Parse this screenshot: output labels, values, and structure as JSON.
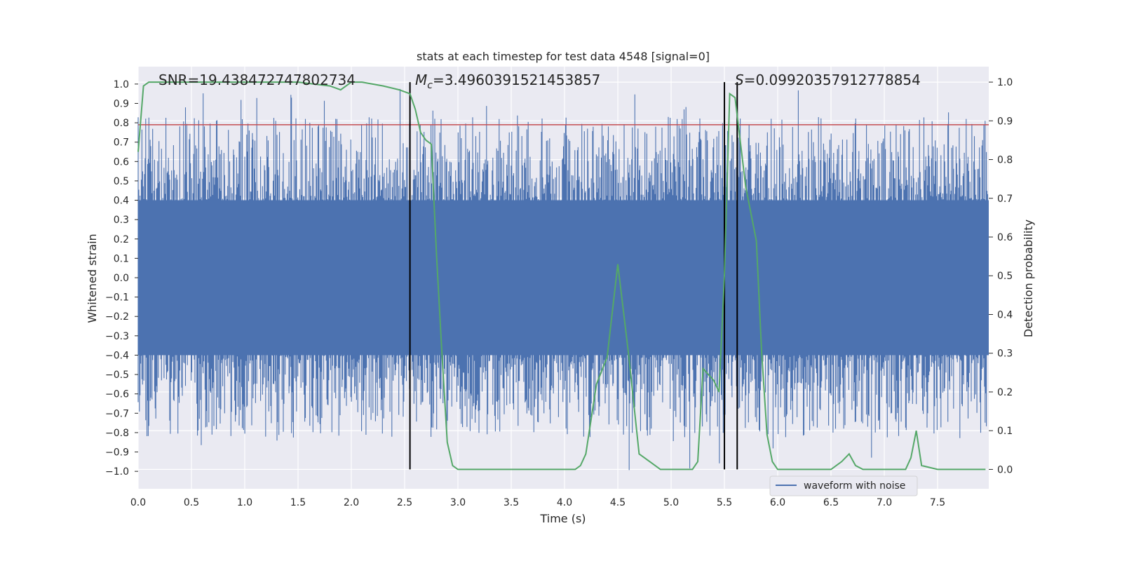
{
  "chart_data": {
    "type": "line",
    "title": "stats at each timestep for test data 4548 [signal=0]",
    "xlabel": "Time (s)",
    "ylabel_left": "Whitened strain",
    "ylabel_right": "Detection probability",
    "xlim": [
      0.0,
      7.98
    ],
    "ylim_left": [
      -1.09,
      1.09
    ],
    "ylim_right": [
      -0.05,
      1.04
    ],
    "x_ticks": [
      "0.0",
      "0.5",
      "1.0",
      "1.5",
      "2.0",
      "2.5",
      "3.0",
      "3.5",
      "4.0",
      "4.5",
      "5.0",
      "5.5",
      "6.0",
      "6.5",
      "7.0",
      "7.5"
    ],
    "y_ticks_left": [
      "1.0",
      "0.9",
      "0.8",
      "0.7",
      "0.6",
      "0.5",
      "0.4",
      "0.3",
      "0.2",
      "0.1",
      "0.0",
      "−0.1",
      "−0.2",
      "−0.3",
      "−0.4",
      "−0.5",
      "−0.6",
      "−0.7",
      "−0.8",
      "−0.9",
      "−1.0"
    ],
    "y_ticks_right": [
      "1.0",
      "0.9",
      "0.8",
      "0.7",
      "0.6",
      "0.5",
      "0.4",
      "0.3",
      "0.2",
      "0.1",
      "0.0"
    ],
    "grid": true,
    "legend_position": "bottom-right",
    "series": [
      {
        "name": "waveform with noise",
        "axis": "left",
        "color": "#4c72b0",
        "style": "dense noisy waveform",
        "x_range": [
          0.0,
          7.98
        ],
        "core_amplitude": 0.4,
        "peak_max": 0.98,
        "peak_min": -1.0
      },
      {
        "name": "detection probability",
        "axis": "right",
        "color": "#55a868",
        "x": [
          0.0,
          0.05,
          0.1,
          0.2,
          0.5,
          1.0,
          1.5,
          1.8,
          1.9,
          2.0,
          2.1,
          2.3,
          2.45,
          2.55,
          2.6,
          2.65,
          2.7,
          2.75,
          2.8,
          2.85,
          2.9,
          2.95,
          3.0,
          3.5,
          4.0,
          4.05,
          4.1,
          4.15,
          4.2,
          4.3,
          4.4,
          4.5,
          4.6,
          4.7,
          4.8,
          4.9,
          5.0,
          5.1,
          5.2,
          5.25,
          5.3,
          5.4,
          5.45,
          5.5,
          5.55,
          5.6,
          5.7,
          5.8,
          5.85,
          5.9,
          5.95,
          6.0,
          6.05,
          6.1,
          6.5,
          6.6,
          6.67,
          6.73,
          6.8,
          7.0,
          7.2,
          7.25,
          7.3,
          7.35,
          7.5,
          7.95
        ],
        "y": [
          0.82,
          0.99,
          1.0,
          1.0,
          1.0,
          1.0,
          1.0,
          0.99,
          0.98,
          1.0,
          1.0,
          0.99,
          0.98,
          0.97,
          0.93,
          0.87,
          0.85,
          0.84,
          0.55,
          0.3,
          0.07,
          0.01,
          0.0,
          0.0,
          0.0,
          0.0,
          0.0,
          0.01,
          0.04,
          0.22,
          0.29,
          0.53,
          0.3,
          0.04,
          0.02,
          0.0,
          0.0,
          0.0,
          0.0,
          0.02,
          0.26,
          0.23,
          0.2,
          0.5,
          0.97,
          0.96,
          0.73,
          0.59,
          0.3,
          0.09,
          0.02,
          0.0,
          0.0,
          0.0,
          0.0,
          0.02,
          0.04,
          0.01,
          0.0,
          0.0,
          0.0,
          0.03,
          0.1,
          0.01,
          0.0,
          0.0
        ]
      }
    ],
    "threshold_line": {
      "axis": "left",
      "y": 0.79,
      "color": "#c44e52"
    },
    "vertical_lines_x": [
      2.55,
      5.5,
      5.62
    ],
    "annotations": {
      "snr": "SNR=19.438472747802734",
      "mc_symbol": "M",
      "mc_subscript": "c",
      "mc_value": "=3.4960391521453857",
      "s_symbol": "S",
      "s_value": "=0.09920357912778854"
    },
    "legend_entries": [
      "waveform with noise"
    ]
  }
}
